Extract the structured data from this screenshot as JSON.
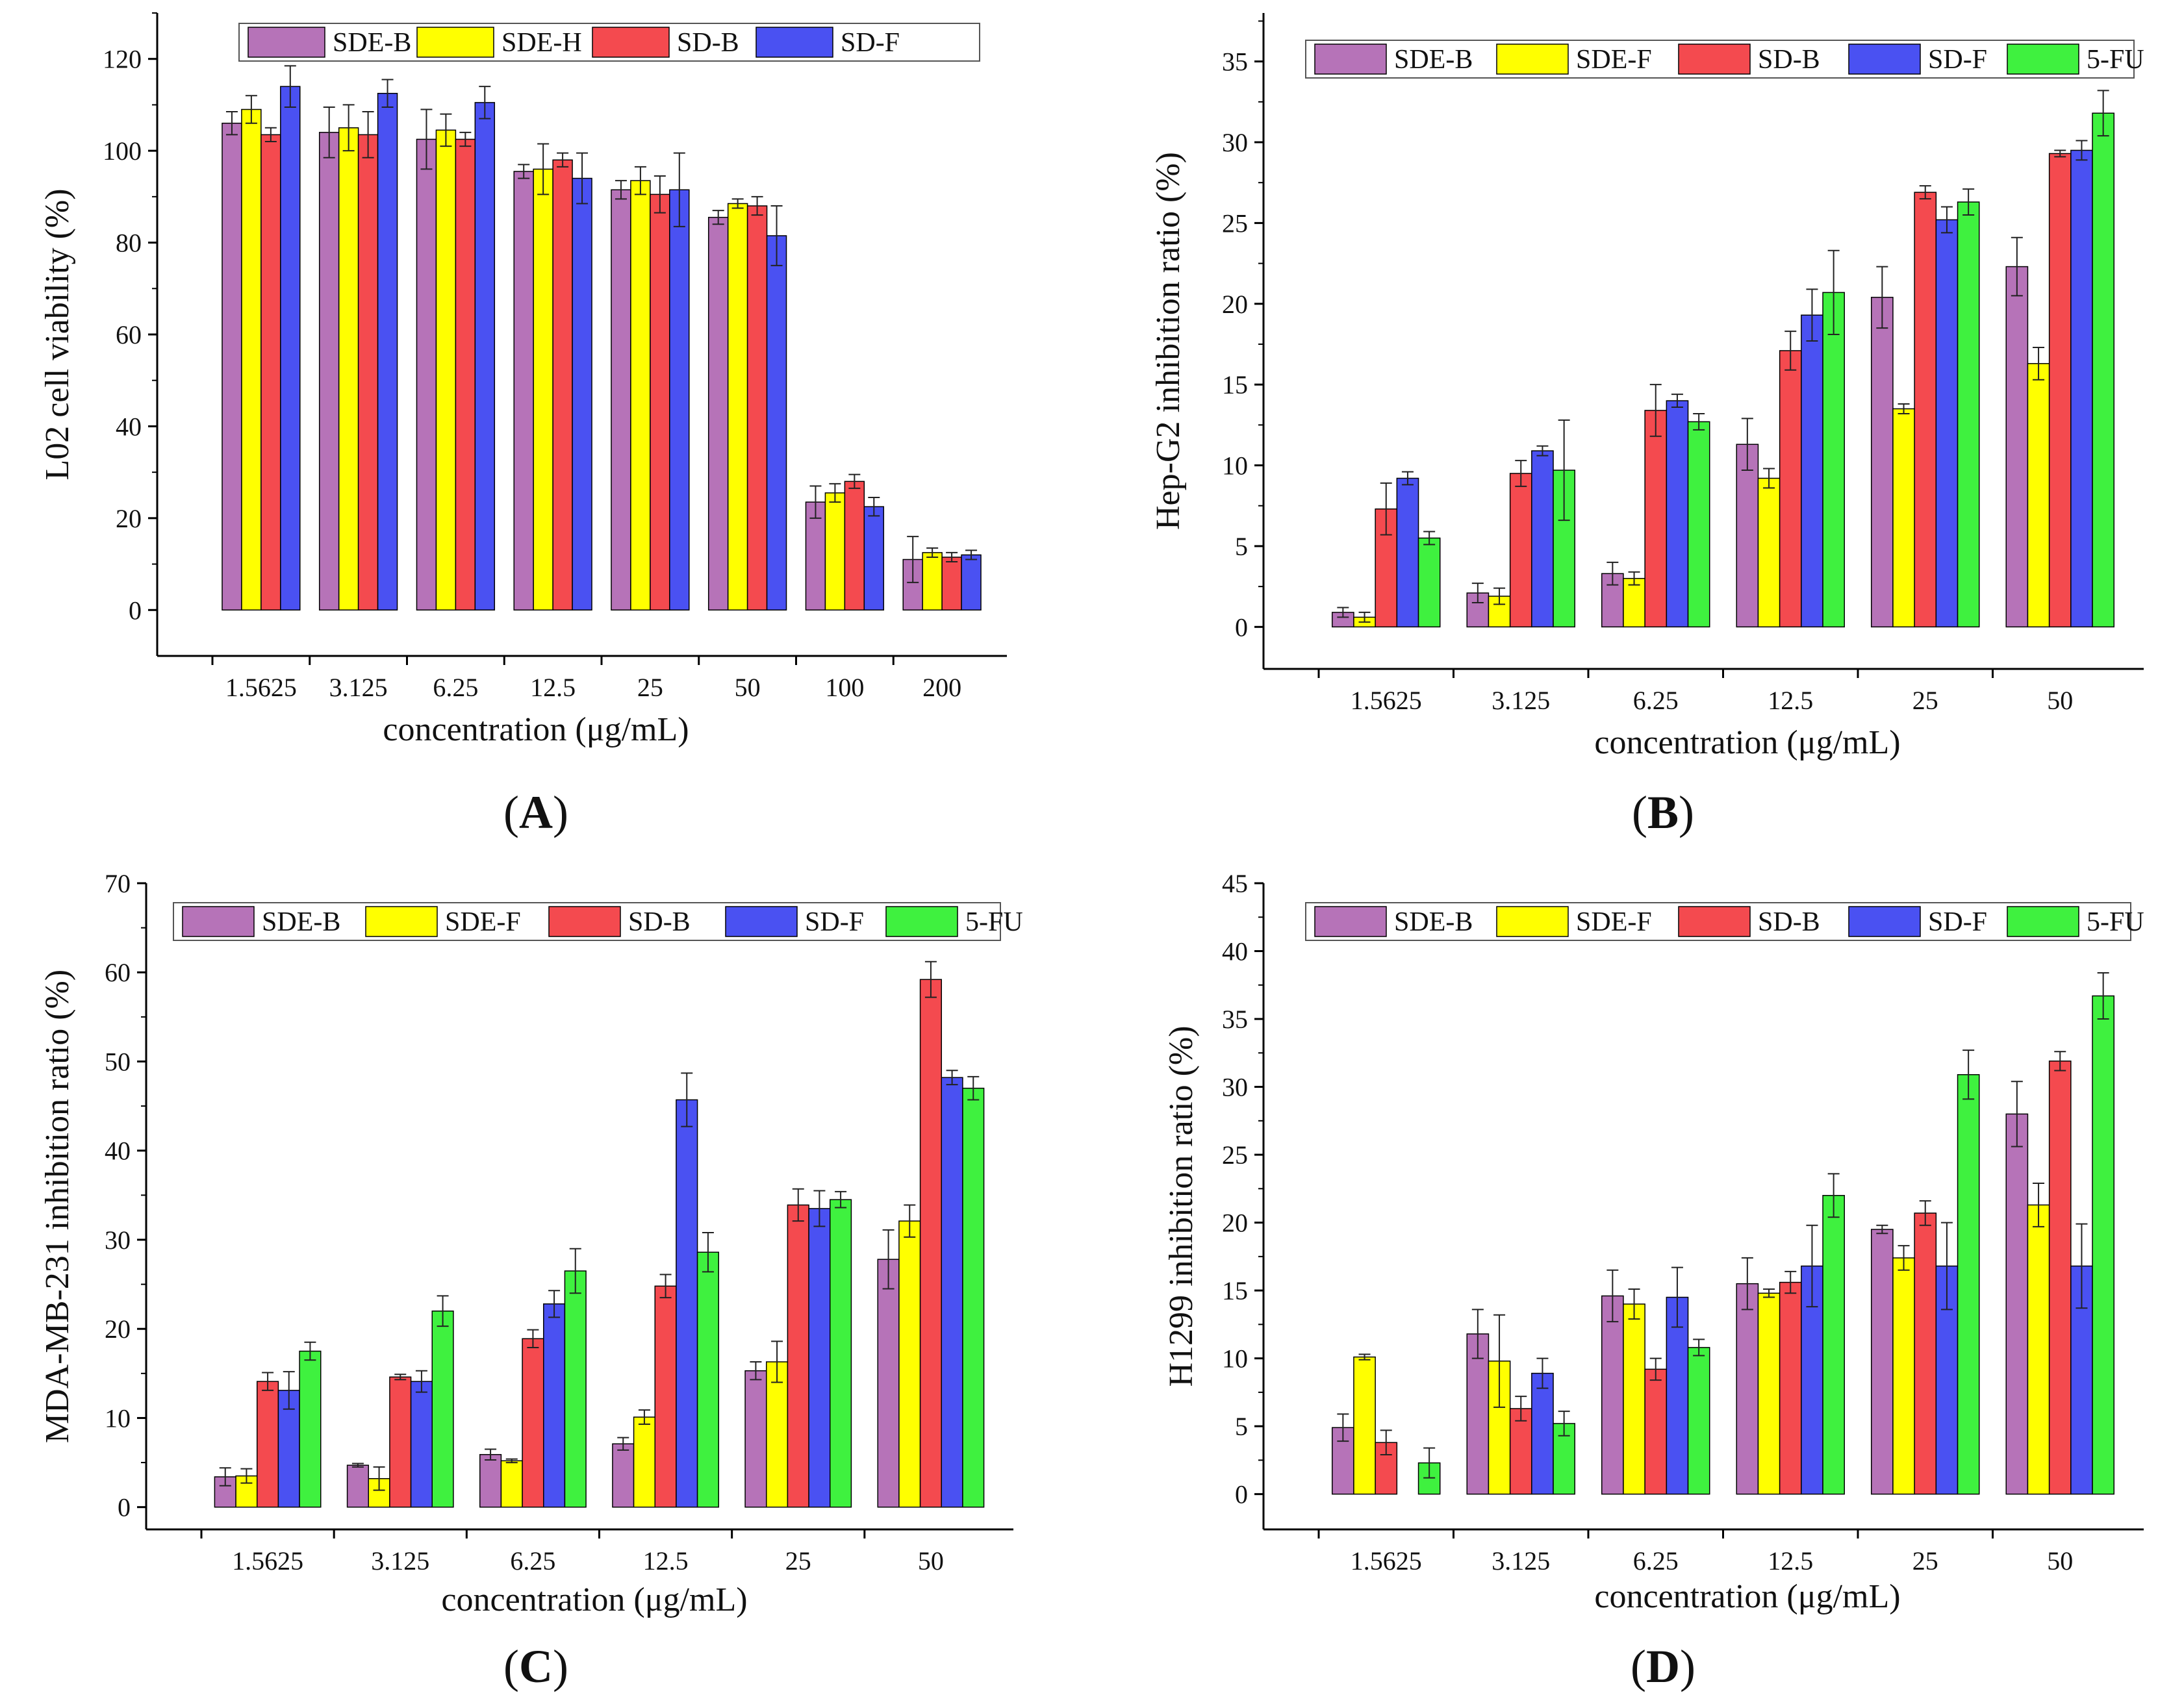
{
  "colors": {
    "SDE-B": "#b673b8",
    "SDE-H": "#ffff00",
    "SDE-F": "#ffff00",
    "SD-B": "#f44a4f",
    "SD-F": "#4a51f2",
    "5-FU": "#3ff13f"
  },
  "chart_data": [
    {
      "id": "A",
      "type": "bar",
      "panel_label": "A",
      "xlabel": "concentration (μg/mL)",
      "ylabel": "L02  cell viability  (%)",
      "ylim": [
        -10,
        130
      ],
      "yticks": [
        0,
        20,
        40,
        60,
        80,
        100,
        120
      ],
      "legend_position": "top",
      "categories": [
        "1.5625",
        "3.125",
        "6.25",
        "12.5",
        "25",
        "50",
        "100",
        "200"
      ],
      "series": [
        {
          "name": "SDE-B",
          "values": [
            106,
            104,
            102.5,
            95.5,
            91.5,
            85.5,
            23.5,
            11
          ],
          "errors": [
            2.5,
            5.5,
            6.5,
            1.5,
            2,
            1.5,
            3.5,
            5
          ]
        },
        {
          "name": "SDE-H",
          "values": [
            109,
            105,
            104.5,
            96,
            93.5,
            88.5,
            25.5,
            12.5
          ],
          "errors": [
            3,
            5,
            3.5,
            5.5,
            3,
            1,
            2,
            1
          ]
        },
        {
          "name": "SD-B",
          "values": [
            103.5,
            103.5,
            102.5,
            98,
            90.5,
            88,
            28,
            11.5
          ],
          "errors": [
            1.5,
            5,
            1.5,
            1.5,
            4,
            2,
            1.5,
            1
          ]
        },
        {
          "name": "SD-F",
          "values": [
            114,
            112.5,
            110.5,
            94,
            91.5,
            81.5,
            22.5,
            12
          ],
          "errors": [
            4.5,
            3,
            3.5,
            5.5,
            8,
            6.5,
            2,
            1
          ]
        }
      ]
    },
    {
      "id": "B",
      "type": "bar",
      "panel_label": "B",
      "xlabel": "concentration (μg/mL)",
      "ylabel": "Hep-G2 inhibition ratio (%)",
      "ylim": [
        -2.6,
        38
      ],
      "yticks": [
        0,
        5,
        10,
        15,
        20,
        25,
        30,
        35
      ],
      "legend_position": "top",
      "categories": [
        "1.5625",
        "3.125",
        "6.25",
        "12.5",
        "25",
        "50"
      ],
      "series": [
        {
          "name": "SDE-B",
          "values": [
            0.9,
            2.1,
            3.3,
            11.3,
            20.4,
            22.3
          ],
          "errors": [
            0.3,
            0.6,
            0.7,
            1.6,
            1.9,
            1.8
          ]
        },
        {
          "name": "SDE-F",
          "values": [
            0.6,
            1.9,
            3.0,
            9.2,
            13.5,
            16.3
          ],
          "errors": [
            0.3,
            0.5,
            0.4,
            0.6,
            0.3,
            1.0
          ]
        },
        {
          "name": "SD-B",
          "values": [
            7.3,
            9.5,
            13.4,
            17.1,
            26.9,
            29.3
          ],
          "errors": [
            1.6,
            0.8,
            1.6,
            1.2,
            0.4,
            0.2
          ]
        },
        {
          "name": "SD-F",
          "values": [
            9.2,
            10.9,
            14.0,
            19.3,
            25.2,
            29.5
          ],
          "errors": [
            0.4,
            0.3,
            0.4,
            1.6,
            0.8,
            0.6
          ]
        },
        {
          "name": "5-FU",
          "values": [
            5.5,
            9.7,
            12.7,
            20.7,
            26.3,
            31.8
          ],
          "errors": [
            0.4,
            3.1,
            0.5,
            2.6,
            0.8,
            1.4
          ]
        }
      ]
    },
    {
      "id": "C",
      "type": "bar",
      "panel_label": "C",
      "xlabel": "concentration (μg/mL)",
      "ylabel": "MDA-MB-231 inhibition ratio (%)",
      "ylim": [
        -2.5,
        70
      ],
      "yticks": [
        0,
        10,
        20,
        30,
        40,
        50,
        60,
        70
      ],
      "legend_position": "top",
      "categories": [
        "1.5625",
        "3.125",
        "6.25",
        "12.5",
        "25",
        "50"
      ],
      "series": [
        {
          "name": "SDE-B",
          "values": [
            3.4,
            4.7,
            5.9,
            7.1,
            15.3,
            27.8
          ],
          "errors": [
            1.0,
            0.2,
            0.6,
            0.7,
            1.0,
            3.3
          ]
        },
        {
          "name": "SDE-F",
          "values": [
            3.5,
            3.2,
            5.2,
            10.1,
            16.3,
            32.1
          ],
          "errors": [
            0.8,
            1.3,
            0.2,
            0.8,
            2.3,
            1.8
          ]
        },
        {
          "name": "SD-B",
          "values": [
            14.1,
            14.6,
            18.9,
            24.8,
            33.9,
            59.2
          ],
          "errors": [
            1.0,
            0.3,
            1.0,
            1.3,
            1.8,
            2.0
          ]
        },
        {
          "name": "SD-F",
          "values": [
            13.1,
            14.1,
            22.8,
            45.7,
            33.5,
            48.2
          ],
          "errors": [
            2.1,
            1.2,
            1.5,
            3.0,
            2.0,
            0.8
          ]
        },
        {
          "name": "5-FU",
          "values": [
            17.5,
            22.0,
            26.5,
            28.6,
            34.5,
            47.0
          ],
          "errors": [
            1.0,
            1.7,
            2.5,
            2.2,
            0.9,
            1.3
          ]
        }
      ]
    },
    {
      "id": "D",
      "type": "bar",
      "panel_label": "D",
      "xlabel": "concentration (μg/mL)",
      "ylabel": "H1299 inhibition ratio (%)",
      "ylim": [
        -2.6,
        45
      ],
      "yticks": [
        0,
        5,
        10,
        15,
        20,
        25,
        30,
        35,
        40,
        45
      ],
      "legend_position": "top",
      "categories": [
        "1.5625",
        "3.125",
        "6.25",
        "12.5",
        "25",
        "50"
      ],
      "series": [
        {
          "name": "SDE-B",
          "values": [
            4.9,
            11.8,
            14.6,
            15.5,
            19.5,
            28.0
          ],
          "errors": [
            1.0,
            1.8,
            1.9,
            1.9,
            0.3,
            2.4
          ]
        },
        {
          "name": "SDE-F",
          "values": [
            10.1,
            9.8,
            14.0,
            14.8,
            17.4,
            21.3
          ],
          "errors": [
            0.2,
            3.4,
            1.1,
            0.3,
            0.9,
            1.6
          ]
        },
        {
          "name": "SD-B",
          "values": [
            3.8,
            6.3,
            9.2,
            15.6,
            20.7,
            31.9
          ],
          "errors": [
            0.9,
            0.9,
            0.8,
            0.8,
            0.9,
            0.7
          ]
        },
        {
          "name": "SD-F",
          "values": [
            0,
            8.9,
            14.5,
            16.8,
            16.8,
            16.8
          ],
          "errors": [
            0,
            1.1,
            2.2,
            3.0,
            3.2,
            3.1
          ]
        },
        {
          "name": "5-FU",
          "values": [
            2.3,
            5.2,
            10.8,
            22.0,
            30.9,
            36.7
          ],
          "errors": [
            1.1,
            0.9,
            0.6,
            1.6,
            1.8,
            1.7
          ]
        }
      ]
    }
  ]
}
